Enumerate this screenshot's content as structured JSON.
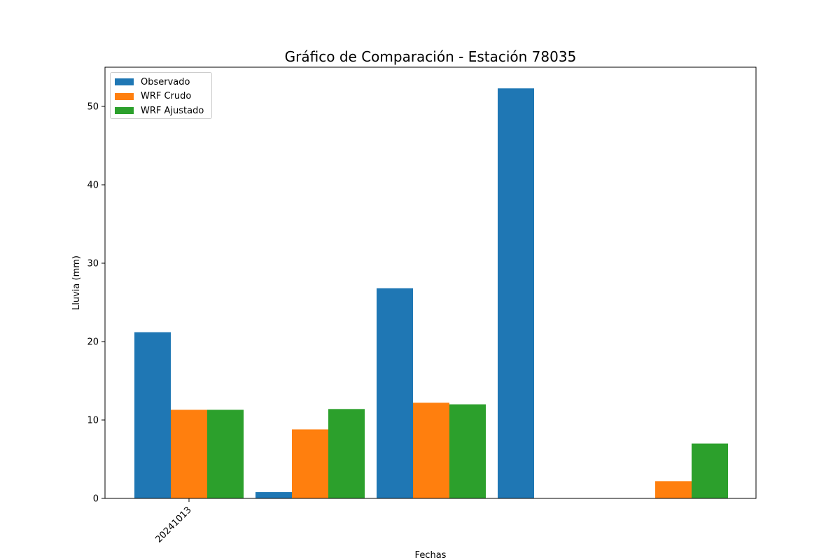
{
  "chart_data": {
    "type": "bar",
    "title": "Gráfico de Comparación - Estación 78035",
    "xlabel": "Fechas",
    "ylabel": "Lluvia (mm)",
    "ylim": [
      0,
      55
    ],
    "yticks": [
      0,
      10,
      20,
      30,
      40,
      50
    ],
    "categories": [
      "20241013",
      "",
      "",
      "",
      ""
    ],
    "series": [
      {
        "name": "Observado",
        "color": "#1f77b4",
        "values": [
          21.2,
          0.8,
          26.8,
          52.3,
          0
        ]
      },
      {
        "name": "WRF Crudo",
        "color": "#ff7f0e",
        "values": [
          11.3,
          8.8,
          12.2,
          0,
          2.2
        ]
      },
      {
        "name": "WRF Ajustado",
        "color": "#2ca02c",
        "values": [
          11.3,
          11.4,
          12.0,
          0,
          7.0
        ]
      }
    ],
    "legend_position": "top-left",
    "grid": false
  }
}
